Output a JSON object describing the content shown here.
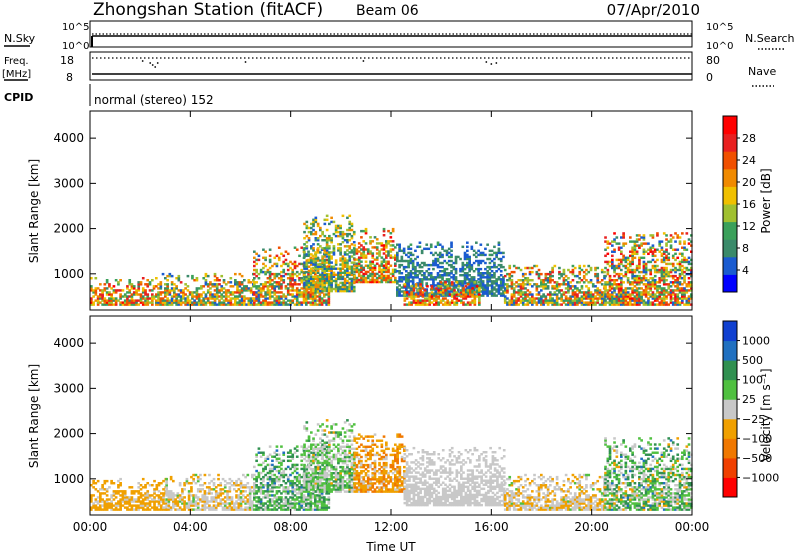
{
  "header": {
    "title": "Zhongshan Station (fitACF)",
    "beam": "Beam 06",
    "date": "07/Apr/2010"
  },
  "top_panel": {
    "left_label": "N.Sky",
    "right_label": "N.Search",
    "y_top": "10^5",
    "y_bottom": "10^0"
  },
  "freq_panel": {
    "left_label": "Freq.",
    "left_unit": "[MHz]",
    "left_top": "18",
    "left_bottom": "8",
    "right_label": "Nave",
    "right_top": "80",
    "right_bottom": "0"
  },
  "cpid": {
    "label": "CPID",
    "value": "normal (stereo) 152"
  },
  "colors": {
    "power": [
      "#0000ff",
      "#1a5bd0",
      "#3a8a6a",
      "#3aa05a",
      "#a0c030",
      "#f0c000",
      "#f08a00",
      "#f05000",
      "#e82020",
      "#ff0000"
    ],
    "velocity": [
      "#ff0000",
      "#f04000",
      "#f07800",
      "#f0a000",
      "#c8c8c8",
      "#50c040",
      "#309050",
      "#2070c0",
      "#1040d0"
    ]
  },
  "chart_data": [
    {
      "type": "heatmap",
      "panel": "power",
      "ylabel": "Slant Range [km]",
      "xlabel": "",
      "yticks": [
        1000,
        2000,
        3000,
        4000
      ],
      "ylim": [
        200,
        4600
      ],
      "colorbar_label": "Power [dB]",
      "colorbar_ticks": [
        "4",
        "8",
        "12",
        "16",
        "20",
        "24",
        "28"
      ],
      "colorbar_range": [
        0,
        32
      ],
      "patches": [
        {
          "t0": 0.0,
          "t1": 2.5,
          "r0": 300,
          "r1": 900,
          "v": [
            8,
            30
          ]
        },
        {
          "t0": 2.5,
          "t1": 6.5,
          "r0": 300,
          "r1": 1000,
          "v": [
            4,
            26
          ]
        },
        {
          "t0": 6.5,
          "t1": 9.5,
          "r0": 300,
          "r1": 1600,
          "v": [
            4,
            28
          ]
        },
        {
          "t0": 8.5,
          "t1": 10.5,
          "r0": 600,
          "r1": 2300,
          "v": [
            4,
            22
          ]
        },
        {
          "t0": 10.5,
          "t1": 12.2,
          "r0": 800,
          "r1": 2000,
          "v": [
            8,
            30
          ]
        },
        {
          "t0": 12.2,
          "t1": 16.5,
          "r0": 500,
          "r1": 1700,
          "v": [
            4,
            10
          ]
        },
        {
          "t0": 12.5,
          "t1": 15.5,
          "r0": 300,
          "r1": 800,
          "v": [
            10,
            30
          ]
        },
        {
          "t0": 16.5,
          "t1": 20.5,
          "r0": 300,
          "r1": 1200,
          "v": [
            4,
            28
          ]
        },
        {
          "t0": 20.5,
          "t1": 24.0,
          "r0": 300,
          "r1": 1900,
          "v": [
            4,
            30
          ]
        }
      ]
    },
    {
      "type": "heatmap",
      "panel": "velocity",
      "ylabel": "Slant Range [km]",
      "xlabel": "Time UT",
      "xticks": [
        "00:00",
        "04:00",
        "08:00",
        "12:00",
        "16:00",
        "20:00",
        "00:00"
      ],
      "yticks": [
        1000,
        2000,
        3000,
        4000
      ],
      "ylim": [
        200,
        4600
      ],
      "colorbar_label": "Velocity [m s⁻¹]",
      "colorbar_ticks": [
        "-1000",
        "-500",
        "-100",
        "-25",
        "25",
        "100",
        "500",
        "1000"
      ],
      "colorbar_range": [
        -1500,
        1500
      ],
      "patches": [
        {
          "t0": 0.0,
          "t1": 3.0,
          "r0": 300,
          "r1": 1000,
          "v": [
            -500,
            -50
          ]
        },
        {
          "t0": 3.0,
          "t1": 6.5,
          "r0": 300,
          "r1": 1100,
          "v": [
            -400,
            200
          ]
        },
        {
          "t0": 6.5,
          "t1": 9.5,
          "r0": 300,
          "r1": 1700,
          "v": [
            -100,
            900
          ]
        },
        {
          "t0": 8.5,
          "t1": 10.5,
          "r0": 700,
          "r1": 2300,
          "v": [
            -200,
            600
          ]
        },
        {
          "t0": 10.5,
          "t1": 12.5,
          "r0": 700,
          "r1": 2000,
          "v": [
            -700,
            -80
          ]
        },
        {
          "t0": 12.5,
          "t1": 16.5,
          "r0": 400,
          "r1": 1700,
          "v": [
            -20,
            20
          ]
        },
        {
          "t0": 16.5,
          "t1": 20.5,
          "r0": 300,
          "r1": 1100,
          "v": [
            -400,
            200
          ]
        },
        {
          "t0": 20.5,
          "t1": 24.0,
          "r0": 300,
          "r1": 1900,
          "v": [
            -300,
            900
          ]
        }
      ]
    }
  ]
}
